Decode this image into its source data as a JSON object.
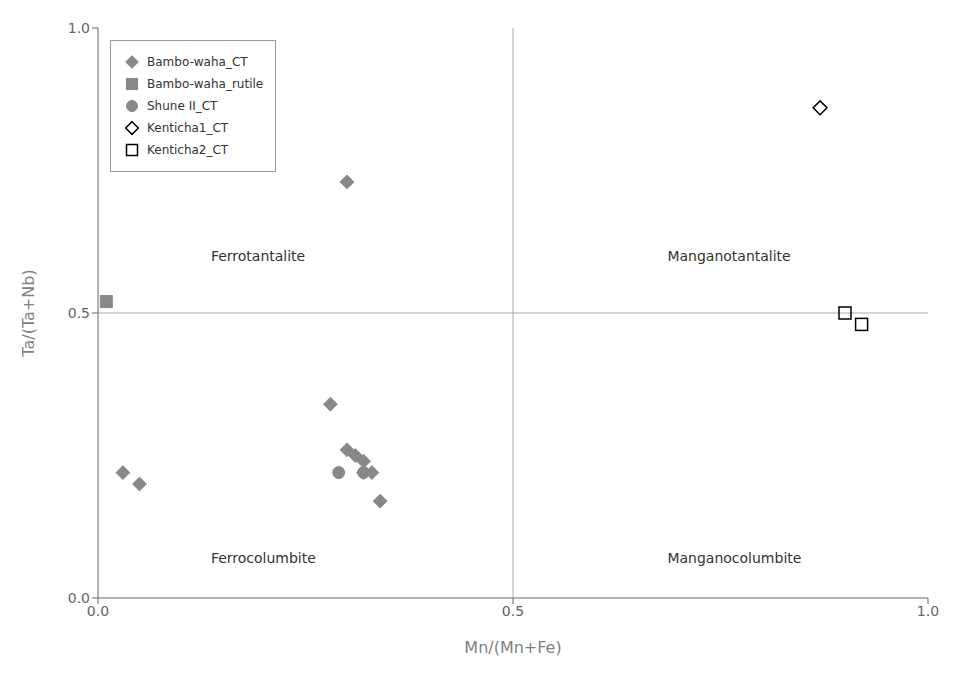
{
  "chart_data": {
    "type": "scatter",
    "xlabel": "Mn/(Mn+Fe)",
    "ylabel": "Ta/(Ta+Nb)",
    "series": [
      {
        "name": "Bambo-waha_CT",
        "color": "#888888",
        "marker": "diamond",
        "x": [
          0.03,
          0.05,
          0.3,
          0.28,
          0.3,
          0.31,
          0.32,
          0.32,
          0.33,
          0.34
        ],
        "y": [
          0.22,
          0.2,
          0.73,
          0.34,
          0.26,
          0.25,
          0.24,
          0.22,
          0.22,
          0.17
        ]
      },
      {
        "name": "Bambo-waha_rutile",
        "color": "#888888",
        "marker": "square",
        "x": [
          0.01
        ],
        "y": [
          0.52
        ]
      },
      {
        "name": "Shune II_CT",
        "color": "#888888",
        "marker": "circle",
        "x": [
          0.29,
          0.32
        ],
        "y": [
          0.22,
          0.22
        ]
      },
      {
        "name": "Kenticha1_CT",
        "color": "#000000",
        "marker": "diamond_open",
        "x": [
          0.87
        ],
        "y": [
          0.86
        ]
      },
      {
        "name": "Kenticha2_CT",
        "color": "#000000",
        "marker": "square_open",
        "x": [
          0.9,
          0.92
        ],
        "y": [
          0.5,
          0.48
        ]
      }
    ],
    "xlim": [
      0.0,
      1.0
    ],
    "ylim": [
      0.0,
      1.0
    ],
    "xticks": [
      {
        "value": 0.0,
        "label": "0.0"
      },
      {
        "value": 0.5,
        "label": "0.5"
      },
      {
        "value": 1.0,
        "label": "1.0"
      }
    ],
    "yticks": [
      {
        "value": 0.0,
        "label": "0.0"
      },
      {
        "value": 0.5,
        "label": "0.5"
      },
      {
        "value": 1.0,
        "label": "1.0"
      }
    ],
    "dividers": {
      "x": 0.5,
      "y": 0.5,
      "color": "#aaaaaa"
    },
    "annotations": [
      {
        "text": "Ferrotantalite",
        "x": 0.13,
        "y": 0.6
      },
      {
        "text": "Manganotantalite",
        "x": 0.68,
        "y": 0.6
      },
      {
        "text": "Ferrocolumbite",
        "x": 0.13,
        "y": 0.07
      },
      {
        "text": "Manganocolumbite",
        "x": 0.68,
        "y": 0.07
      }
    ],
    "legend": "upper left",
    "grid": false
  }
}
